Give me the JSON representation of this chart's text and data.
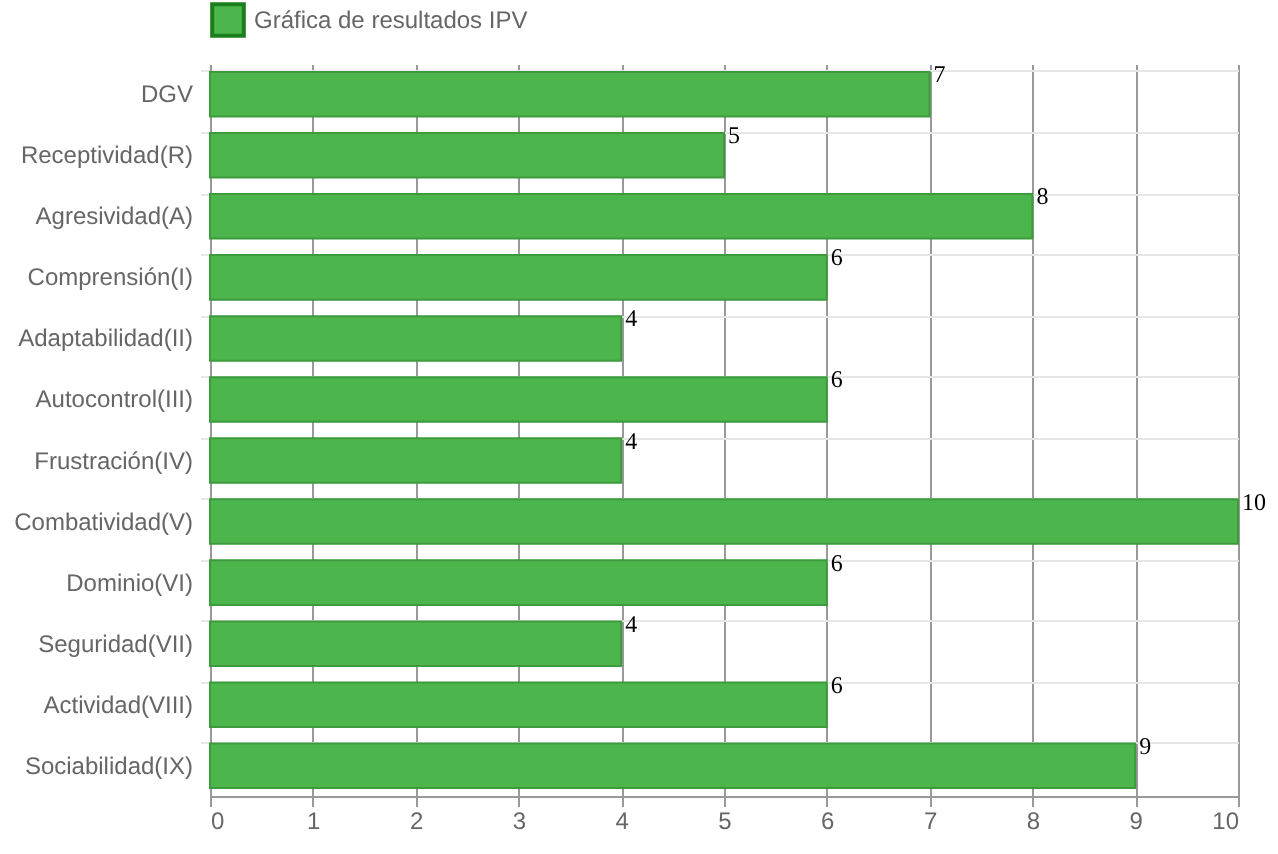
{
  "chart_data": {
    "type": "bar",
    "orientation": "horizontal",
    "legend": "top",
    "grid": true,
    "data_labels": true,
    "categories": [
      "DGV",
      "Receptividad(R)",
      "Agresividad(A)",
      "Comprensión(I)",
      "Adaptabilidad(II)",
      "Autocontrol(III)",
      "Frustración(IV)",
      "Combatividad(V)",
      "Dominio(VI)",
      "Seguridad(VII)",
      "Actividad(VIII)",
      "Sociabilidad(IX)"
    ],
    "series": [
      {
        "name": "Gráfica de resultados IPV",
        "color": "#4cb64c",
        "values": [
          7,
          5,
          8,
          6,
          4,
          6,
          4,
          10,
          6,
          4,
          6,
          9
        ]
      }
    ],
    "xlim": [
      0,
      10
    ],
    "xticks": [
      0,
      1,
      2,
      3,
      4,
      5,
      6,
      7,
      8,
      9,
      10
    ]
  }
}
